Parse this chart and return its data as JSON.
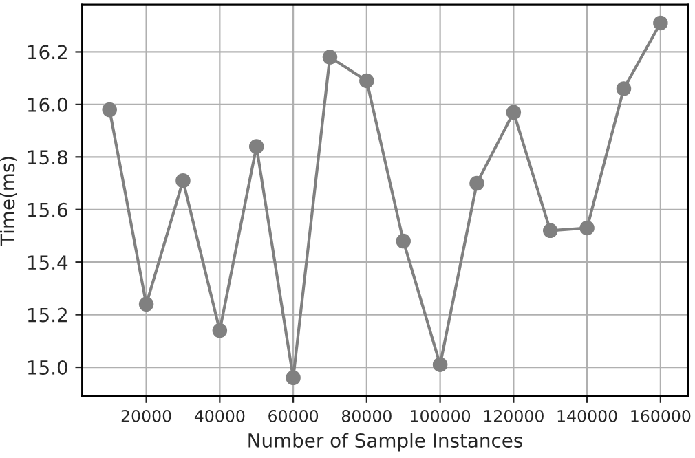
{
  "chart_data": {
    "type": "line",
    "xlabel": "Number of Sample Instances",
    "ylabel": "Time(ms)",
    "x": [
      10000,
      20000,
      30000,
      40000,
      50000,
      60000,
      70000,
      80000,
      90000,
      100000,
      110000,
      120000,
      130000,
      140000,
      150000,
      160000
    ],
    "series": [
      {
        "color": "#808080",
        "values": [
          15.98,
          15.24,
          15.71,
          15.14,
          15.84,
          14.96,
          16.18,
          16.09,
          15.48,
          15.01,
          15.7,
          15.97,
          15.52,
          15.53,
          16.06,
          16.31
        ]
      }
    ],
    "xlim": [
      2500,
      167500
    ],
    "ylim": [
      14.89,
      16.38
    ],
    "xticks": [
      20000,
      40000,
      60000,
      80000,
      100000,
      120000,
      140000,
      160000
    ],
    "yticks": [
      {
        "value": 15.0,
        "label": "15.0"
      },
      {
        "value": 15.2,
        "label": "15.2"
      },
      {
        "value": 15.4,
        "label": "15.4"
      },
      {
        "value": 15.6,
        "label": "15.6"
      },
      {
        "value": 15.8,
        "label": "15.8"
      },
      {
        "value": 16.0,
        "label": "16.0"
      },
      {
        "value": 16.2,
        "label": "16.2"
      }
    ],
    "grid": true,
    "marker": "circle",
    "line_style": "solid"
  }
}
